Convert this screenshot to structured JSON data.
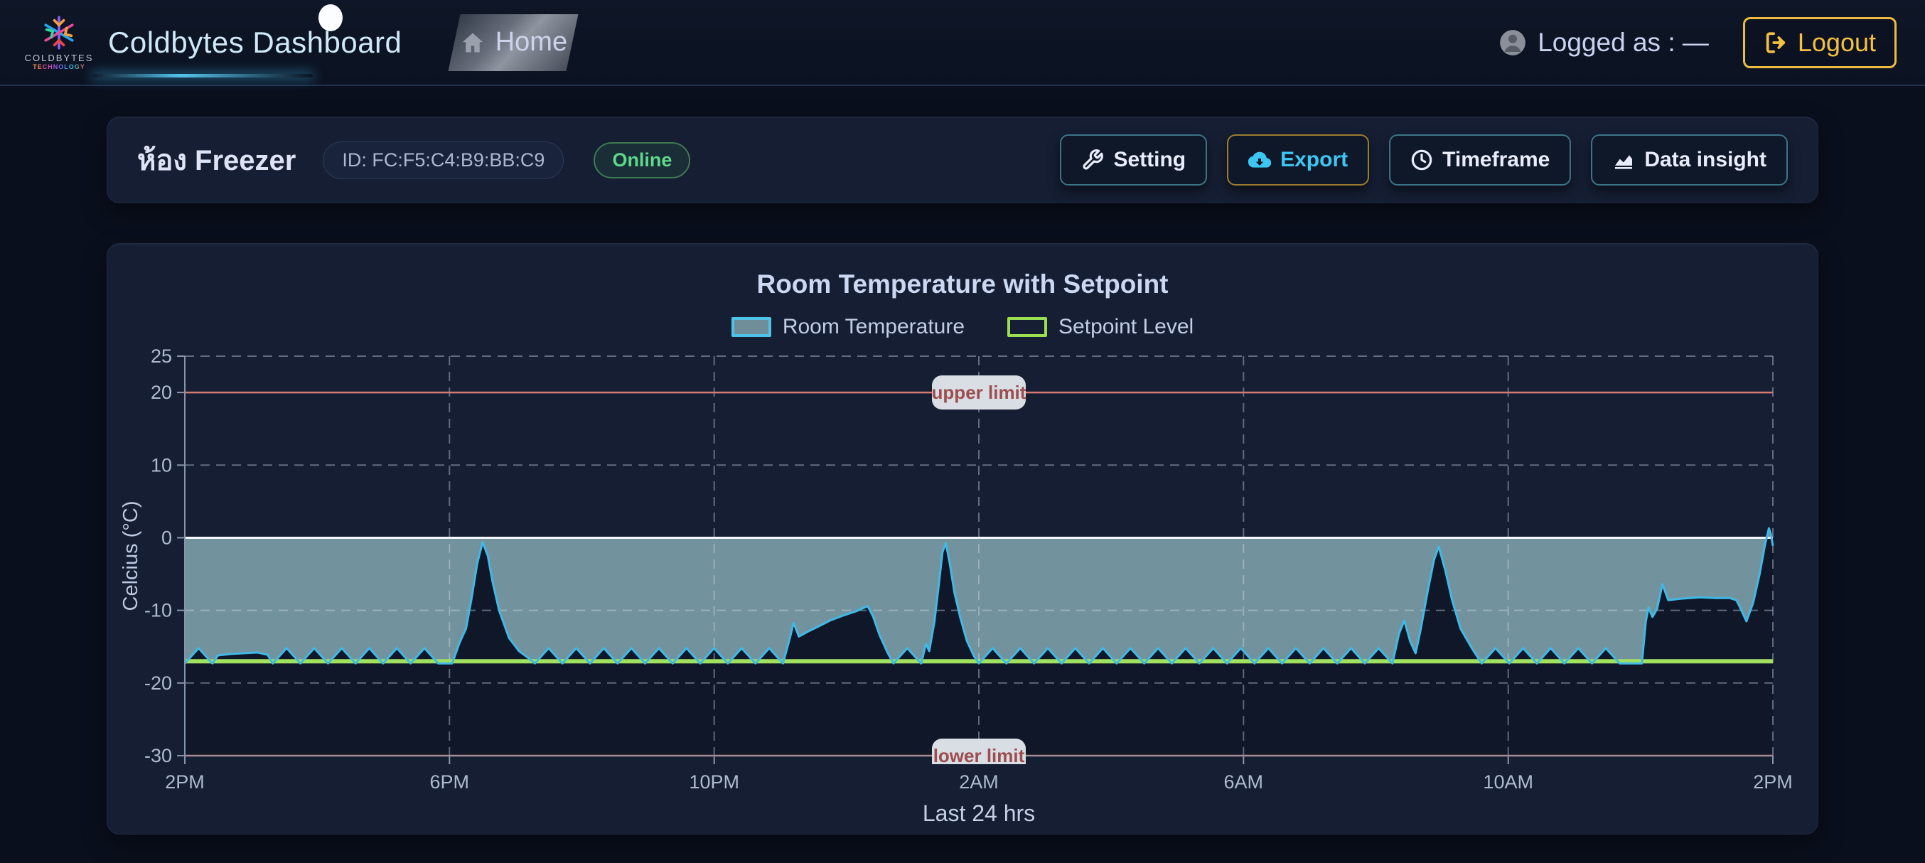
{
  "navbar": {
    "brand": "Coldbytes Dashboard",
    "logo_line1": "COLDBYTES",
    "logo_line2": "TECHNOLOGY",
    "home_label": "Home",
    "logged_as": "Logged as : —",
    "logout_label": "Logout"
  },
  "header": {
    "room_title": "ห้อง Freezer",
    "device_id": "ID: FC:F5:C4:B9:BB:C9",
    "status": "Online",
    "buttons": [
      {
        "label": "Setting",
        "icon": "wrench-icon"
      },
      {
        "label": "Export",
        "icon": "cloud-download-icon"
      },
      {
        "label": "Timeframe",
        "icon": "clock-icon"
      },
      {
        "label": "Data insight",
        "icon": "area-chart-icon"
      }
    ]
  },
  "chart_data": {
    "type": "area",
    "title": "Room Temperature with Setpoint",
    "ylabel": "Celcius (°C)",
    "caption": "Last 24 hrs",
    "ylim": [
      -30,
      25
    ],
    "y_ticks": [
      25,
      20,
      10,
      0,
      -10,
      -20,
      -30
    ],
    "x_ticks": [
      {
        "h": 0,
        "label": "2PM"
      },
      {
        "h": 4,
        "label": "6PM"
      },
      {
        "h": 8,
        "label": "10PM"
      },
      {
        "h": 12,
        "label": "2AM"
      },
      {
        "h": 16,
        "label": "6AM"
      },
      {
        "h": 20,
        "label": "10AM"
      },
      {
        "h": 24,
        "label": "2PM"
      }
    ],
    "grid_h_dashed": [
      25,
      10,
      -10,
      -20
    ],
    "zero_line": 0,
    "setpoint": {
      "label": "Setpoint Level",
      "value": -17,
      "color": "#a2e15f"
    },
    "limits": {
      "upper": {
        "value": 20,
        "label": "upper limit"
      },
      "lower": {
        "value": -30,
        "label": "lower limit"
      },
      "line_color": "#d97a70",
      "pill_fill": "#d9dde4",
      "pill_text_color": "#9c4e4e"
    },
    "legend": [
      {
        "label": "Room Temperature",
        "swatch_fill": "#6f8e9a",
        "swatch_border": "#4fc3e7"
      },
      {
        "label": "Setpoint Level",
        "swatch_fill": "transparent",
        "swatch_border": "#9ade52"
      }
    ],
    "series_name": "Room Temperature",
    "series_colors": {
      "line": "#41b9e6",
      "fill_above_to_zero": "rgba(137,175,184,0.8)",
      "under_fill": "#0f1729",
      "zero_line_color": "#f4f7ff"
    },
    "segments": [
      {
        "type": "sawtooth",
        "from": 0,
        "to": 0.42,
        "period_min": 25,
        "low": -17.3,
        "high": -15.2
      },
      {
        "type": "path",
        "points": [
          [
            0.42,
            -17.3
          ],
          [
            0.5,
            -16.2
          ],
          [
            0.7,
            -16.0
          ],
          [
            1.1,
            -15.8
          ],
          [
            1.25,
            -16.1
          ],
          [
            1.33,
            -17.3
          ]
        ]
      },
      {
        "type": "sawtooth",
        "from": 1.33,
        "to": 4.04,
        "period_min": 25,
        "low": -17.3,
        "high": -15.2
      },
      {
        "type": "path",
        "points": [
          [
            4.04,
            -17.3
          ],
          [
            4.15,
            -14.5
          ],
          [
            4.25,
            -12.5
          ],
          [
            4.33,
            -8.5
          ],
          [
            4.42,
            -3.5
          ],
          [
            4.5,
            -0.6
          ],
          [
            4.58,
            -2.5
          ],
          [
            4.65,
            -6
          ],
          [
            4.75,
            -10
          ],
          [
            4.9,
            -13.8
          ],
          [
            5.05,
            -15.6
          ],
          [
            5.2,
            -16.6
          ],
          [
            5.29,
            -17.3
          ]
        ]
      },
      {
        "type": "sawtooth",
        "from": 5.29,
        "to": 9.04,
        "period_min": 25,
        "low": -17.3,
        "high": -15.2
      },
      {
        "type": "path",
        "points": [
          [
            9.04,
            -17.3
          ],
          [
            9.15,
            -13.6
          ],
          [
            9.2,
            -11.7
          ],
          [
            9.28,
            -13.6
          ],
          [
            9.42,
            -12.9
          ],
          [
            9.6,
            -12.1
          ],
          [
            9.75,
            -11.4
          ],
          [
            9.95,
            -10.7
          ],
          [
            10.15,
            -10.1
          ],
          [
            10.32,
            -9.4
          ],
          [
            10.4,
            -10.8
          ],
          [
            10.5,
            -13.4
          ],
          [
            10.62,
            -15.8
          ],
          [
            10.71,
            -17.3
          ]
        ]
      },
      {
        "type": "sawtooth",
        "from": 10.71,
        "to": 11.13,
        "period_min": 25,
        "low": -17.3,
        "high": -15.2
      },
      {
        "type": "path",
        "points": [
          [
            11.13,
            -17.3
          ],
          [
            11.2,
            -14.6
          ],
          [
            11.25,
            -15.6
          ],
          [
            11.33,
            -11.5
          ],
          [
            11.4,
            -6
          ],
          [
            11.45,
            -2
          ],
          [
            11.5,
            -0.7
          ],
          [
            11.56,
            -3.5
          ],
          [
            11.63,
            -7.5
          ],
          [
            11.72,
            -11
          ],
          [
            11.82,
            -14.2
          ],
          [
            11.92,
            -16.2
          ],
          [
            12.0,
            -17.3
          ]
        ]
      },
      {
        "type": "sawtooth",
        "from": 12.0,
        "to": 18.25,
        "period_min": 25,
        "low": -17.3,
        "high": -15.2
      },
      {
        "type": "path",
        "points": [
          [
            18.25,
            -17.3
          ],
          [
            18.35,
            -13.2
          ],
          [
            18.43,
            -11.4
          ],
          [
            18.52,
            -14.3
          ],
          [
            18.6,
            -15.9
          ],
          [
            18.68,
            -12.5
          ],
          [
            18.78,
            -7.5
          ],
          [
            18.88,
            -3
          ],
          [
            18.95,
            -1.2
          ],
          [
            19.05,
            -4.5
          ],
          [
            19.15,
            -8.5
          ],
          [
            19.28,
            -12.5
          ],
          [
            19.45,
            -15.2
          ],
          [
            19.6,
            -17.3
          ]
        ]
      },
      {
        "type": "sawtooth",
        "from": 19.6,
        "to": 22.02,
        "period_min": 25,
        "low": -17.3,
        "high": -15.2
      },
      {
        "type": "path",
        "points": [
          [
            22.02,
            -17.3
          ],
          [
            22.08,
            -11.5
          ],
          [
            22.12,
            -9.6
          ],
          [
            22.18,
            -10.9
          ],
          [
            22.25,
            -9.8
          ],
          [
            22.33,
            -6.4
          ],
          [
            22.42,
            -8.6
          ],
          [
            22.6,
            -8.4
          ],
          [
            22.9,
            -8.2
          ],
          [
            23.15,
            -8.3
          ],
          [
            23.35,
            -8.3
          ],
          [
            23.45,
            -8.6
          ],
          [
            23.52,
            -9.9
          ],
          [
            23.6,
            -11.5
          ],
          [
            23.7,
            -9
          ],
          [
            23.8,
            -5
          ],
          [
            23.88,
            -1
          ],
          [
            23.94,
            1.3
          ],
          [
            23.97,
            0.5
          ],
          [
            24,
            -1.1
          ]
        ]
      }
    ]
  }
}
